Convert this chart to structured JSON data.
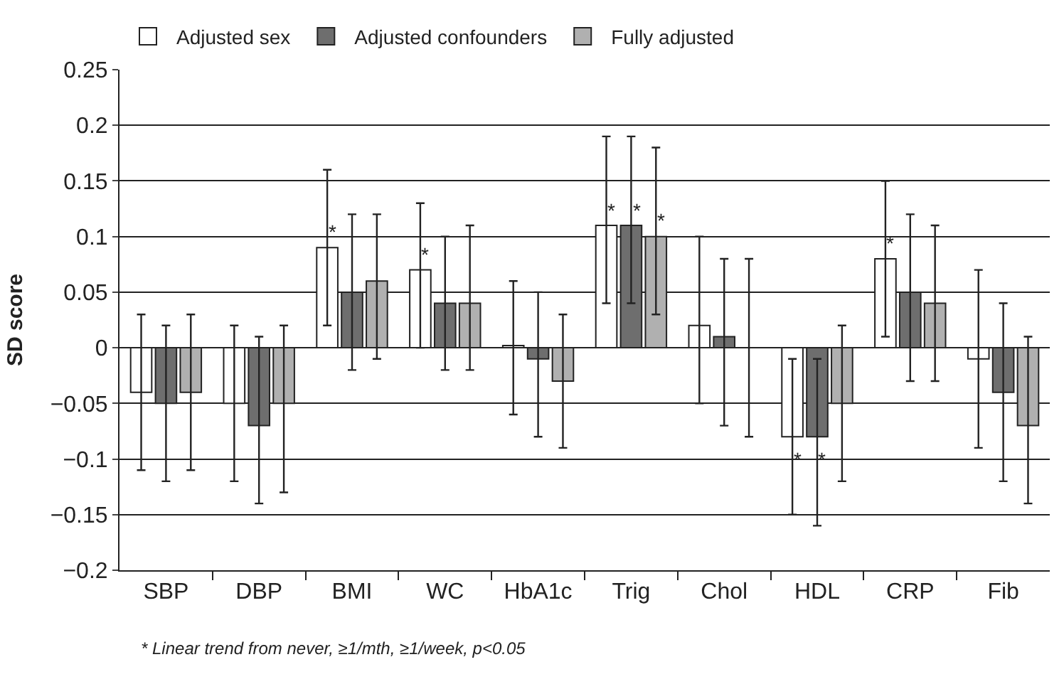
{
  "chart_data": {
    "type": "bar",
    "ylabel": "SD score",
    "categories": [
      "SBP",
      "DBP",
      "BMI",
      "WC",
      "HbA1c",
      "Trig",
      "Chol",
      "HDL",
      "CRP",
      "Fib"
    ],
    "series": [
      {
        "name": "Adjusted sex",
        "color": "#ffffff",
        "values": [
          -0.04,
          -0.05,
          0.09,
          0.07,
          0.002,
          0.11,
          0.02,
          -0.08,
          0.08,
          -0.01
        ],
        "errors": [
          [
            -0.11,
            0.03
          ],
          [
            -0.12,
            0.02
          ],
          [
            0.02,
            0.16
          ],
          [
            0.0,
            0.13
          ],
          [
            -0.06,
            0.06
          ],
          [
            0.04,
            0.19
          ],
          [
            -0.05,
            0.1
          ],
          [
            -0.15,
            -0.01
          ],
          [
            0.01,
            0.15
          ],
          [
            -0.09,
            0.07
          ]
        ],
        "value_labels": [
          null,
          null,
          "*",
          "*",
          null,
          "*",
          null,
          "*",
          "*",
          null
        ]
      },
      {
        "name": "Adjusted confounders",
        "color": "#6e6e6e",
        "values": [
          -0.05,
          -0.07,
          0.05,
          0.04,
          -0.01,
          0.11,
          0.01,
          -0.08,
          0.05,
          -0.04
        ],
        "errors": [
          [
            -0.12,
            0.02
          ],
          [
            -0.14,
            0.01
          ],
          [
            -0.02,
            0.12
          ],
          [
            -0.02,
            0.1
          ],
          [
            -0.08,
            0.05
          ],
          [
            0.04,
            0.19
          ],
          [
            -0.07,
            0.08
          ],
          [
            -0.16,
            -0.01
          ],
          [
            -0.03,
            0.12
          ],
          [
            -0.12,
            0.04
          ]
        ],
        "value_labels": [
          null,
          null,
          null,
          null,
          null,
          "*",
          null,
          "*",
          null,
          null
        ]
      },
      {
        "name": "Fully adjusted",
        "color": "#b0b0b0",
        "values": [
          -0.04,
          -0.05,
          0.06,
          0.04,
          -0.03,
          0.1,
          0.0,
          -0.05,
          0.04,
          -0.07
        ],
        "errors": [
          [
            -0.11,
            0.03
          ],
          [
            -0.13,
            0.02
          ],
          [
            -0.01,
            0.12
          ],
          [
            -0.02,
            0.11
          ],
          [
            -0.09,
            0.03
          ],
          [
            0.03,
            0.18
          ],
          [
            -0.08,
            0.08
          ],
          [
            -0.12,
            0.02
          ],
          [
            -0.03,
            0.11
          ],
          [
            -0.14,
            0.01
          ]
        ],
        "value_labels": [
          null,
          null,
          null,
          null,
          null,
          "*",
          null,
          null,
          null,
          null
        ]
      }
    ],
    "ylim": [
      -0.2,
      0.25
    ],
    "yticks": [
      -0.2,
      -0.15,
      -0.1,
      -0.05,
      0,
      0.05,
      0.1,
      0.15,
      0.2,
      0.25
    ],
    "grid": "y",
    "legend": "top left",
    "annotations": [
      "* Linear trend from never, ≥1/mth, ≥1/week, p<0.05"
    ]
  }
}
